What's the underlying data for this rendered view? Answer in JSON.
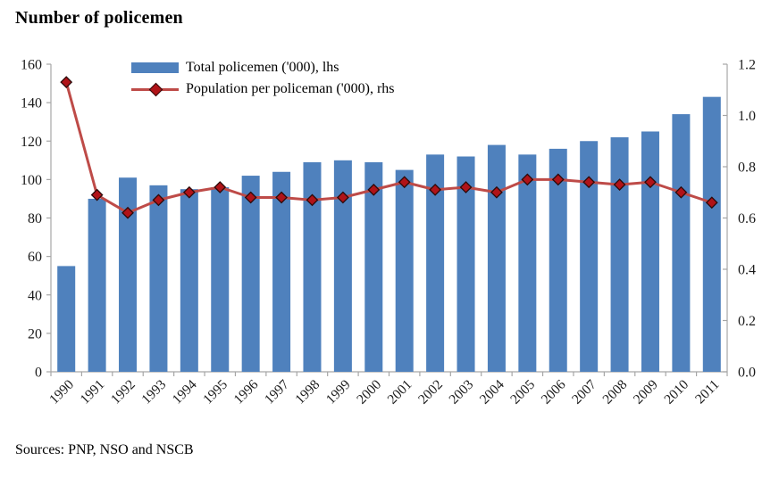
{
  "page": {
    "title": "Number of policemen",
    "source_note": "Sources: PNP, NSO and NSCB"
  },
  "legend": {
    "bar_label": "Total policemen ('000), lhs",
    "line_label": "Population per policeman ('000), rhs"
  },
  "colors": {
    "bar": "#4F81BD",
    "line": "#BE4B48",
    "marker_fill": "#B01318",
    "marker_border": "#2D0A0A",
    "axis": "#A6A6A6",
    "tick_text": "#1A1A1A"
  },
  "chart_data": {
    "type": "bar",
    "subtype": "bar+line dual axis",
    "title": "Number of policemen",
    "categories": [
      "1990",
      "1991",
      "1992",
      "1993",
      "1994",
      "1995",
      "1996",
      "1997",
      "1998",
      "1999",
      "2000",
      "2001",
      "2002",
      "2003",
      "2004",
      "2005",
      "2006",
      "2007",
      "2008",
      "2009",
      "2010",
      "2011"
    ],
    "series": [
      {
        "name": "Total policemen ('000), lhs",
        "type": "bar",
        "axis": "left",
        "color": "#4F81BD",
        "values": [
          55,
          90,
          101,
          97,
          95,
          96,
          102,
          104,
          109,
          110,
          109,
          105,
          113,
          112,
          118,
          113,
          116,
          120,
          122,
          125,
          134,
          143
        ]
      },
      {
        "name": "Population per policeman ('000), rhs",
        "type": "line",
        "axis": "right",
        "color": "#BE4B48",
        "marker": "diamond",
        "values": [
          1.13,
          0.69,
          0.62,
          0.67,
          0.7,
          0.72,
          0.68,
          0.68,
          0.67,
          0.68,
          0.71,
          0.74,
          0.71,
          0.72,
          0.7,
          0.75,
          0.75,
          0.74,
          0.73,
          0.74,
          0.7,
          0.66
        ]
      }
    ],
    "left_axis": {
      "label": "",
      "min": 0,
      "max": 160,
      "step": 20,
      "tick_labels": [
        "0",
        "20",
        "40",
        "60",
        "80",
        "100",
        "120",
        "140",
        "160"
      ]
    },
    "right_axis": {
      "label": "",
      "min": 0,
      "max": 1.2,
      "step": 0.2,
      "tick_labels": [
        "0.0",
        "0.2",
        "0.4",
        "0.6",
        "0.8",
        "1.0",
        "1.2"
      ]
    },
    "xlabel": "",
    "ylabel": "",
    "grid": false,
    "legend_position": "inside top-left",
    "source": "Sources: PNP, NSO and NSCB"
  }
}
